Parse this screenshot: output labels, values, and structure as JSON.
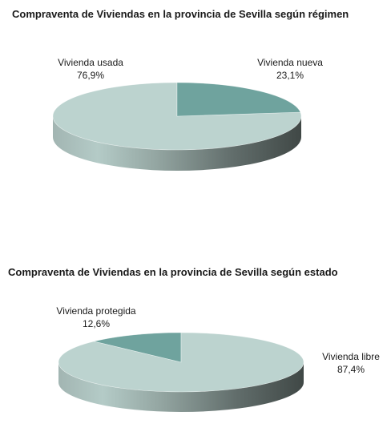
{
  "colors": {
    "primary_slice": "#bcd3cf",
    "secondary_slice": "#6fa39e"
  },
  "chart_data": [
    {
      "type": "pie",
      "title": "Compraventa de Viviendas en la provincia de Sevilla según régimen",
      "slices": [
        {
          "name": "Vivienda usada",
          "value": 76.9,
          "value_label": "76,9%"
        },
        {
          "name": "Vivienda nueva",
          "value": 23.1,
          "value_label": "23,1%"
        }
      ]
    },
    {
      "type": "pie",
      "title": "Compraventa de Viviendas en la provincia de Sevilla según estado",
      "slices": [
        {
          "name": "Vivienda protegida",
          "value": 12.6,
          "value_label": "12,6%"
        },
        {
          "name": "Vivienda libre",
          "value": 87.4,
          "value_label": "87,4%"
        }
      ]
    }
  ]
}
